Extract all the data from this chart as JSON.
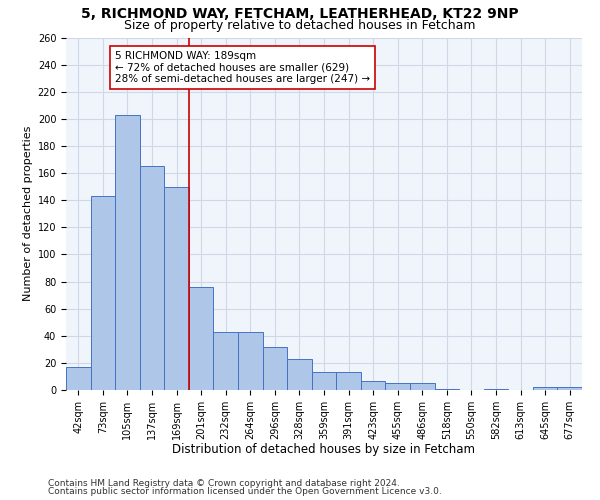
{
  "title1": "5, RICHMOND WAY, FETCHAM, LEATHERHEAD, KT22 9NP",
  "title2": "Size of property relative to detached houses in Fetcham",
  "xlabel": "Distribution of detached houses by size in Fetcham",
  "ylabel": "Number of detached properties",
  "footnote1": "Contains HM Land Registry data © Crown copyright and database right 2024.",
  "footnote2": "Contains public sector information licensed under the Open Government Licence v3.0.",
  "bar_labels": [
    "42sqm",
    "73sqm",
    "105sqm",
    "137sqm",
    "169sqm",
    "201sqm",
    "232sqm",
    "264sqm",
    "296sqm",
    "328sqm",
    "359sqm",
    "391sqm",
    "423sqm",
    "455sqm",
    "486sqm",
    "518sqm",
    "550sqm",
    "582sqm",
    "613sqm",
    "645sqm",
    "677sqm"
  ],
  "bar_values": [
    17,
    143,
    203,
    165,
    150,
    76,
    43,
    43,
    32,
    23,
    13,
    13,
    7,
    5,
    5,
    1,
    0,
    1,
    0,
    2,
    2
  ],
  "bar_color": "#aec6e8",
  "bar_edgecolor": "#4472c4",
  "annotation_text": "5 RICHMOND WAY: 189sqm\n← 72% of detached houses are smaller (629)\n28% of semi-detached houses are larger (247) →",
  "vline_x": 4.5,
  "vline_color": "#cc0000",
  "annotation_box_edgecolor": "#cc0000",
  "ylim": [
    0,
    260
  ],
  "yticks": [
    0,
    20,
    40,
    60,
    80,
    100,
    120,
    140,
    160,
    180,
    200,
    220,
    240,
    260
  ],
  "grid_color": "#d0d8e8",
  "background_color": "#f0f4fb",
  "title1_fontsize": 10,
  "title2_fontsize": 9,
  "xlabel_fontsize": 8.5,
  "ylabel_fontsize": 8,
  "tick_fontsize": 7,
  "annot_fontsize": 7.5,
  "footnote_fontsize": 6.5
}
